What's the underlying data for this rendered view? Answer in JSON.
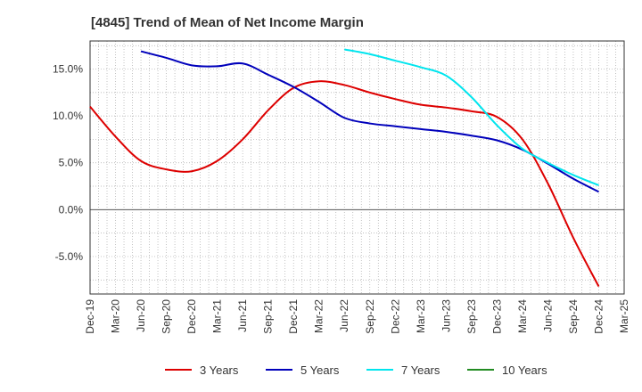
{
  "chart_data": {
    "type": "line",
    "title": "[4845]  Trend of Mean of Net Income Margin",
    "xlabel": "",
    "ylabel": "",
    "ylim": [
      -9,
      18
    ],
    "y_ticks": [
      15,
      10,
      5,
      0,
      -5
    ],
    "y_tick_labels": [
      "15.0%",
      "10.0%",
      "5.0%",
      "0.0%",
      "-5.0%"
    ],
    "x_range": [
      "Dec-19",
      "Mar-25"
    ],
    "x_tick_labels": [
      "Dec-19",
      "Mar-20",
      "Jun-20",
      "Sep-20",
      "Dec-20",
      "Mar-21",
      "Jun-21",
      "Sep-21",
      "Dec-21",
      "Mar-22",
      "Jun-22",
      "Sep-22",
      "Dec-22",
      "Mar-23",
      "Jun-23",
      "Sep-23",
      "Dec-23",
      "Mar-24",
      "Jun-24",
      "Sep-24",
      "Dec-24",
      "Mar-25"
    ],
    "grid": true,
    "legend_position": "bottom",
    "series": [
      {
        "name": "3 Years",
        "color": "#dd0000",
        "points": [
          [
            "Dec-19",
            11.0
          ],
          [
            "Mar-20",
            7.8
          ],
          [
            "Jun-20",
            5.2
          ],
          [
            "Sep-20",
            4.3
          ],
          [
            "Dec-20",
            4.1
          ],
          [
            "Mar-21",
            5.2
          ],
          [
            "Jun-21",
            7.5
          ],
          [
            "Sep-21",
            10.6
          ],
          [
            "Dec-21",
            13.0
          ],
          [
            "Mar-22",
            13.7
          ],
          [
            "Jun-22",
            13.3
          ],
          [
            "Sep-22",
            12.5
          ],
          [
            "Dec-22",
            11.8
          ],
          [
            "Mar-23",
            11.2
          ],
          [
            "Jun-23",
            10.9
          ],
          [
            "Sep-23",
            10.5
          ],
          [
            "Dec-23",
            9.9
          ],
          [
            "Mar-24",
            7.5
          ],
          [
            "Jun-24",
            2.8
          ],
          [
            "Sep-24",
            -3.0
          ],
          [
            "Dec-24",
            -8.2
          ]
        ]
      },
      {
        "name": "5 Years",
        "color": "#0000bb",
        "points": [
          [
            "Jun-20",
            16.9
          ],
          [
            "Sep-20",
            16.2
          ],
          [
            "Dec-20",
            15.4
          ],
          [
            "Mar-21",
            15.3
          ],
          [
            "Jun-21",
            15.6
          ],
          [
            "Sep-21",
            14.4
          ],
          [
            "Dec-21",
            13.1
          ],
          [
            "Mar-22",
            11.5
          ],
          [
            "Jun-22",
            9.8
          ],
          [
            "Sep-22",
            9.2
          ],
          [
            "Dec-22",
            8.9
          ],
          [
            "Mar-23",
            8.6
          ],
          [
            "Jun-23",
            8.3
          ],
          [
            "Sep-23",
            7.9
          ],
          [
            "Dec-23",
            7.4
          ],
          [
            "Mar-24",
            6.4
          ],
          [
            "Jun-24",
            4.9
          ],
          [
            "Sep-24",
            3.3
          ],
          [
            "Dec-24",
            1.9
          ]
        ]
      },
      {
        "name": "7 Years",
        "color": "#00e5ee",
        "points": [
          [
            "Jun-22",
            17.1
          ],
          [
            "Sep-22",
            16.6
          ],
          [
            "Dec-22",
            15.9
          ],
          [
            "Mar-23",
            15.2
          ],
          [
            "Jun-23",
            14.3
          ],
          [
            "Sep-23",
            12.0
          ],
          [
            "Dec-23",
            9.0
          ],
          [
            "Mar-24",
            6.5
          ],
          [
            "Jun-24",
            5.0
          ],
          [
            "Sep-24",
            3.7
          ],
          [
            "Dec-24",
            2.6
          ]
        ]
      },
      {
        "name": "10 Years",
        "color": "#228b22",
        "points": []
      }
    ]
  }
}
